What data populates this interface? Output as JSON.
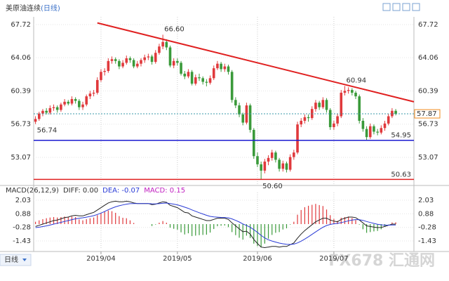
{
  "chart_data": [
    {
      "type": "candlestick",
      "title": "美原油连续",
      "period": "(日线)",
      "footer": "日线",
      "watermark": "FX678 汇通网",
      "up_color": "#e0393c",
      "down_color": "#3a9a3a",
      "xlim": [
        -0.5,
        104
      ],
      "ylim": [
        50.12,
        68.26
      ],
      "yticks": [
        67.72,
        64.06,
        60.39,
        56.73,
        53.07
      ],
      "grid": true,
      "candles": [
        [
          57.0,
          57.6,
          56.74,
          57.3
        ],
        [
          57.3,
          58.1,
          57.1,
          57.9
        ],
        [
          57.9,
          58.4,
          57.6,
          58.2
        ],
        [
          58.2,
          58.5,
          57.8,
          58.0
        ],
        [
          58.0,
          58.8,
          57.8,
          58.5
        ],
        [
          58.5,
          58.9,
          58.2,
          58.6
        ],
        [
          58.6,
          58.8,
          58.0,
          58.3
        ],
        [
          58.3,
          59.1,
          58.1,
          58.9
        ],
        [
          58.9,
          59.5,
          58.7,
          59.2
        ],
        [
          59.2,
          59.4,
          58.8,
          59.0
        ],
        [
          59.0,
          59.8,
          58.8,
          59.5
        ],
        [
          59.5,
          59.7,
          59.0,
          59.3
        ],
        [
          59.3,
          59.5,
          58.3,
          58.6
        ],
        [
          58.6,
          59.2,
          58.3,
          58.9
        ],
        [
          58.9,
          60.0,
          58.7,
          59.8
        ],
        [
          59.8,
          60.4,
          59.5,
          60.1
        ],
        [
          60.1,
          60.5,
          59.8,
          60.2
        ],
        [
          60.2,
          61.9,
          60.0,
          61.6
        ],
        [
          61.6,
          62.8,
          61.4,
          62.5
        ],
        [
          62.5,
          62.9,
          62.1,
          62.6
        ],
        [
          62.6,
          64.0,
          62.4,
          63.7
        ],
        [
          63.7,
          64.2,
          63.4,
          63.9
        ],
        [
          63.9,
          64.1,
          63.4,
          63.7
        ],
        [
          63.7,
          63.9,
          62.8,
          63.1
        ],
        [
          63.1,
          63.8,
          62.9,
          63.5
        ],
        [
          63.5,
          64.3,
          63.3,
          64.0
        ],
        [
          64.0,
          64.2,
          63.5,
          63.8
        ],
        [
          63.8,
          64.0,
          62.9,
          63.1
        ],
        [
          63.1,
          63.7,
          62.9,
          63.4
        ],
        [
          63.4,
          64.0,
          63.1,
          63.8
        ],
        [
          63.8,
          64.4,
          63.5,
          64.1
        ],
        [
          64.1,
          64.5,
          63.8,
          64.2
        ],
        [
          64.2,
          64.4,
          63.3,
          63.6
        ],
        [
          63.6,
          64.9,
          63.4,
          64.6
        ],
        [
          64.6,
          65.6,
          64.4,
          65.3
        ],
        [
          65.3,
          66.6,
          65.0,
          65.8
        ],
        [
          65.8,
          66.1,
          64.9,
          65.2
        ],
        [
          65.2,
          65.4,
          63.0,
          63.2
        ],
        [
          63.2,
          64.0,
          62.9,
          63.7
        ],
        [
          63.7,
          64.0,
          63.2,
          63.5
        ],
        [
          63.5,
          63.7,
          62.1,
          62.3
        ],
        [
          62.3,
          62.6,
          61.7,
          62.0
        ],
        [
          62.0,
          62.8,
          61.8,
          62.5
        ],
        [
          62.5,
          62.7,
          61.0,
          61.2
        ],
        [
          61.2,
          62.2,
          61.0,
          61.9
        ],
        [
          61.9,
          62.3,
          61.5,
          61.8
        ],
        [
          61.8,
          62.0,
          61.1,
          61.4
        ],
        [
          61.4,
          61.7,
          60.9,
          61.3
        ],
        [
          61.3,
          62.1,
          61.1,
          61.8
        ],
        [
          61.8,
          63.2,
          61.6,
          62.9
        ],
        [
          62.9,
          63.7,
          62.7,
          63.4
        ],
        [
          63.4,
          63.6,
          62.5,
          62.8
        ],
        [
          62.8,
          63.4,
          62.5,
          63.1
        ],
        [
          63.1,
          63.3,
          62.2,
          62.5
        ],
        [
          62.5,
          62.7,
          59.1,
          59.4
        ],
        [
          59.4,
          59.7,
          58.5,
          58.8
        ],
        [
          58.8,
          59.1,
          57.5,
          57.8
        ],
        [
          57.8,
          58.0,
          56.6,
          56.9
        ],
        [
          56.9,
          59.1,
          56.7,
          58.8
        ],
        [
          58.8,
          59.0,
          55.8,
          56.1
        ],
        [
          56.1,
          56.3,
          52.9,
          53.2
        ],
        [
          53.2,
          53.6,
          52.0,
          52.3
        ],
        [
          52.3,
          52.6,
          50.6,
          51.6
        ],
        [
          51.6,
          52.9,
          51.3,
          52.6
        ],
        [
          52.6,
          53.3,
          52.2,
          53.0
        ],
        [
          53.0,
          53.9,
          52.7,
          53.6
        ],
        [
          53.6,
          53.8,
          52.5,
          52.8
        ],
        [
          52.8,
          53.0,
          51.5,
          51.8
        ],
        [
          51.8,
          52.7,
          51.5,
          52.4
        ],
        [
          52.4,
          52.6,
          51.4,
          51.7
        ],
        [
          51.7,
          53.4,
          51.5,
          53.1
        ],
        [
          53.1,
          53.9,
          52.8,
          53.6
        ],
        [
          53.6,
          57.0,
          53.4,
          56.7
        ],
        [
          56.7,
          57.4,
          56.4,
          57.1
        ],
        [
          57.1,
          57.8,
          56.8,
          57.5
        ],
        [
          57.5,
          57.8,
          57.0,
          57.4
        ],
        [
          57.4,
          58.7,
          57.2,
          58.4
        ],
        [
          58.4,
          59.4,
          58.1,
          59.1
        ],
        [
          59.1,
          59.3,
          58.3,
          58.6
        ],
        [
          58.6,
          59.7,
          58.4,
          59.4
        ],
        [
          59.4,
          59.6,
          58.0,
          58.3
        ],
        [
          58.3,
          58.5,
          56.1,
          56.4
        ],
        [
          56.4,
          57.1,
          56.1,
          56.8
        ],
        [
          56.8,
          57.9,
          56.5,
          57.6
        ],
        [
          57.6,
          60.5,
          57.4,
          60.2
        ],
        [
          60.2,
          60.94,
          59.9,
          60.4
        ],
        [
          60.4,
          60.8,
          60.1,
          60.5
        ],
        [
          60.5,
          60.7,
          59.9,
          60.2
        ],
        [
          60.2,
          60.4,
          59.5,
          59.8
        ],
        [
          59.8,
          60.0,
          56.8,
          57.1
        ],
        [
          57.1,
          57.4,
          55.9,
          56.2
        ],
        [
          56.2,
          56.5,
          55.0,
          55.3
        ],
        [
          55.3,
          56.8,
          55.1,
          56.5
        ],
        [
          56.5,
          56.7,
          55.6,
          55.9
        ],
        [
          55.9,
          56.2,
          55.5,
          55.8
        ],
        [
          55.8,
          56.6,
          55.6,
          56.3
        ],
        [
          56.3,
          57.1,
          56.0,
          56.8
        ],
        [
          56.8,
          57.9,
          56.6,
          57.6
        ],
        [
          57.6,
          58.5,
          57.4,
          58.2
        ],
        [
          58.2,
          58.4,
          57.7,
          57.87
        ]
      ],
      "annotations": [
        {
          "x": 35,
          "value": 66.6,
          "label": "66.60",
          "color": "#e05a5a",
          "side": "above"
        },
        {
          "x": 0,
          "value": 56.74,
          "label": "56.74",
          "color": "#3a9a3a",
          "side": "below"
        },
        {
          "x": 85,
          "value": 60.94,
          "label": "60.94",
          "color": "#e05a5a",
          "side": "above"
        },
        {
          "x": 62,
          "value": 50.6,
          "label": "50.60",
          "color": "#3a9a3a",
          "side": "below"
        }
      ],
      "trendline": {
        "x": [
          17,
          104
        ],
        "y": [
          67.9,
          59.2
        ],
        "color": "#e02020"
      },
      "hlines": [
        {
          "value": 54.95,
          "label": "54.95",
          "color": "#1a1ad0"
        },
        {
          "value": 50.63,
          "label": "50.63",
          "color": "#e02020"
        }
      ],
      "last_price": {
        "value": 57.87,
        "label": "57.87",
        "color": "#f08c1e"
      }
    },
    {
      "type": "macd",
      "name": "MACD(26,12,9)",
      "diff_text": "DIFF: 0.00",
      "dea_text": "DEA: -0.07",
      "macd_text": "MACD: 0.15",
      "xlim": [
        -0.5,
        104
      ],
      "ylim": [
        -2.15,
        2.45
      ],
      "yticks": [
        2.03,
        0.88,
        -0.28,
        -1.43
      ],
      "grid": true,
      "xticks": [
        {
          "value": 18,
          "label": "2019/04"
        },
        {
          "value": 39,
          "label": "2019/05"
        },
        {
          "value": 61,
          "label": "2019/06"
        },
        {
          "value": 82,
          "label": "2019/07"
        }
      ],
      "diff": {
        "color": "#222222",
        "values": [
          -0.2,
          -0.1,
          0.0,
          0.1,
          0.2,
          0.3,
          0.35,
          0.45,
          0.55,
          0.6,
          0.7,
          0.75,
          0.7,
          0.7,
          0.8,
          0.9,
          1.0,
          1.2,
          1.4,
          1.6,
          1.8,
          1.9,
          1.95,
          1.9,
          1.9,
          1.95,
          1.9,
          1.8,
          1.75,
          1.75,
          1.75,
          1.75,
          1.65,
          1.7,
          1.8,
          1.9,
          1.85,
          1.6,
          1.5,
          1.4,
          1.2,
          1.0,
          0.95,
          0.7,
          0.6,
          0.5,
          0.4,
          0.3,
          0.3,
          0.4,
          0.5,
          0.5,
          0.5,
          0.4,
          0.1,
          -0.15,
          -0.4,
          -0.65,
          -0.6,
          -0.85,
          -1.3,
          -1.65,
          -1.95,
          -2.0,
          -1.95,
          -1.9,
          -1.9,
          -1.95,
          -1.9,
          -1.9,
          -1.75,
          -1.6,
          -1.2,
          -0.85,
          -0.55,
          -0.3,
          -0.05,
          0.2,
          0.35,
          0.5,
          0.5,
          0.35,
          0.25,
          0.2,
          0.4,
          0.5,
          0.6,
          0.6,
          0.55,
          0.35,
          0.1,
          -0.15,
          -0.2,
          -0.25,
          -0.3,
          -0.28,
          -0.2,
          -0.1,
          0.0,
          0.0
        ]
      },
      "dea": {
        "color": "#2a3bd6",
        "values": [
          -0.3,
          -0.26,
          -0.21,
          -0.15,
          -0.08,
          0.0,
          0.07,
          0.15,
          0.23,
          0.3,
          0.38,
          0.45,
          0.5,
          0.54,
          0.59,
          0.65,
          0.72,
          0.82,
          0.94,
          1.07,
          1.22,
          1.35,
          1.47,
          1.56,
          1.63,
          1.7,
          1.74,
          1.75,
          1.75,
          1.75,
          1.75,
          1.75,
          1.73,
          1.72,
          1.74,
          1.77,
          1.79,
          1.75,
          1.7,
          1.64,
          1.55,
          1.44,
          1.34,
          1.21,
          1.09,
          0.97,
          0.86,
          0.75,
          0.66,
          0.61,
          0.59,
          0.57,
          0.56,
          0.53,
          0.44,
          0.32,
          0.18,
          0.01,
          -0.11,
          -0.26,
          -0.47,
          -0.71,
          -0.96,
          -1.17,
          -1.33,
          -1.44,
          -1.53,
          -1.61,
          -1.67,
          -1.72,
          -1.73,
          -1.7,
          -1.6,
          -1.45,
          -1.27,
          -1.08,
          -0.87,
          -0.66,
          -0.46,
          -0.27,
          -0.12,
          -0.03,
          0.03,
          0.06,
          0.13,
          0.2,
          0.28,
          0.34,
          0.38,
          0.37,
          0.32,
          0.22,
          0.14,
          0.06,
          -0.01,
          -0.06,
          -0.09,
          -0.09,
          -0.07,
          -0.07
        ]
      },
      "histogram": {
        "up_color": "#e0393c",
        "down_color": "#3a9a3a",
        "values": [
          0.2,
          0.32,
          0.42,
          0.5,
          0.56,
          0.6,
          0.56,
          0.6,
          0.64,
          0.6,
          0.64,
          0.6,
          0.4,
          0.32,
          0.42,
          0.5,
          0.56,
          0.76,
          0.92,
          1.06,
          1.16,
          1.1,
          0.96,
          0.68,
          0.54,
          0.5,
          0.32,
          0.1,
          0,
          0,
          0,
          0,
          -0.16,
          -0.04,
          0.12,
          0.26,
          0.12,
          -0.3,
          -0.4,
          -0.48,
          -0.7,
          -0.88,
          -0.78,
          -1.02,
          -0.98,
          -0.94,
          -0.92,
          -0.9,
          -0.72,
          -0.42,
          -0.18,
          -0.14,
          -0.12,
          -0.26,
          -0.68,
          -0.94,
          -1.16,
          -1.32,
          -0.98,
          -1.18,
          -1.66,
          -1.88,
          -1.98,
          -1.66,
          -1.24,
          -0.92,
          -0.74,
          -0.68,
          -0.46,
          -0.36,
          -0.04,
          0.2,
          0.8,
          1.2,
          1.44,
          1.56,
          1.64,
          1.72,
          1.62,
          1.54,
          1.24,
          0.76,
          0.44,
          0.28,
          0.54,
          0.6,
          0.64,
          0.52,
          0.34,
          -0.04,
          -0.44,
          -0.74,
          -0.68,
          -0.62,
          -0.58,
          -0.44,
          -0.22,
          -0.02,
          0.14,
          0.15
        ]
      }
    }
  ]
}
